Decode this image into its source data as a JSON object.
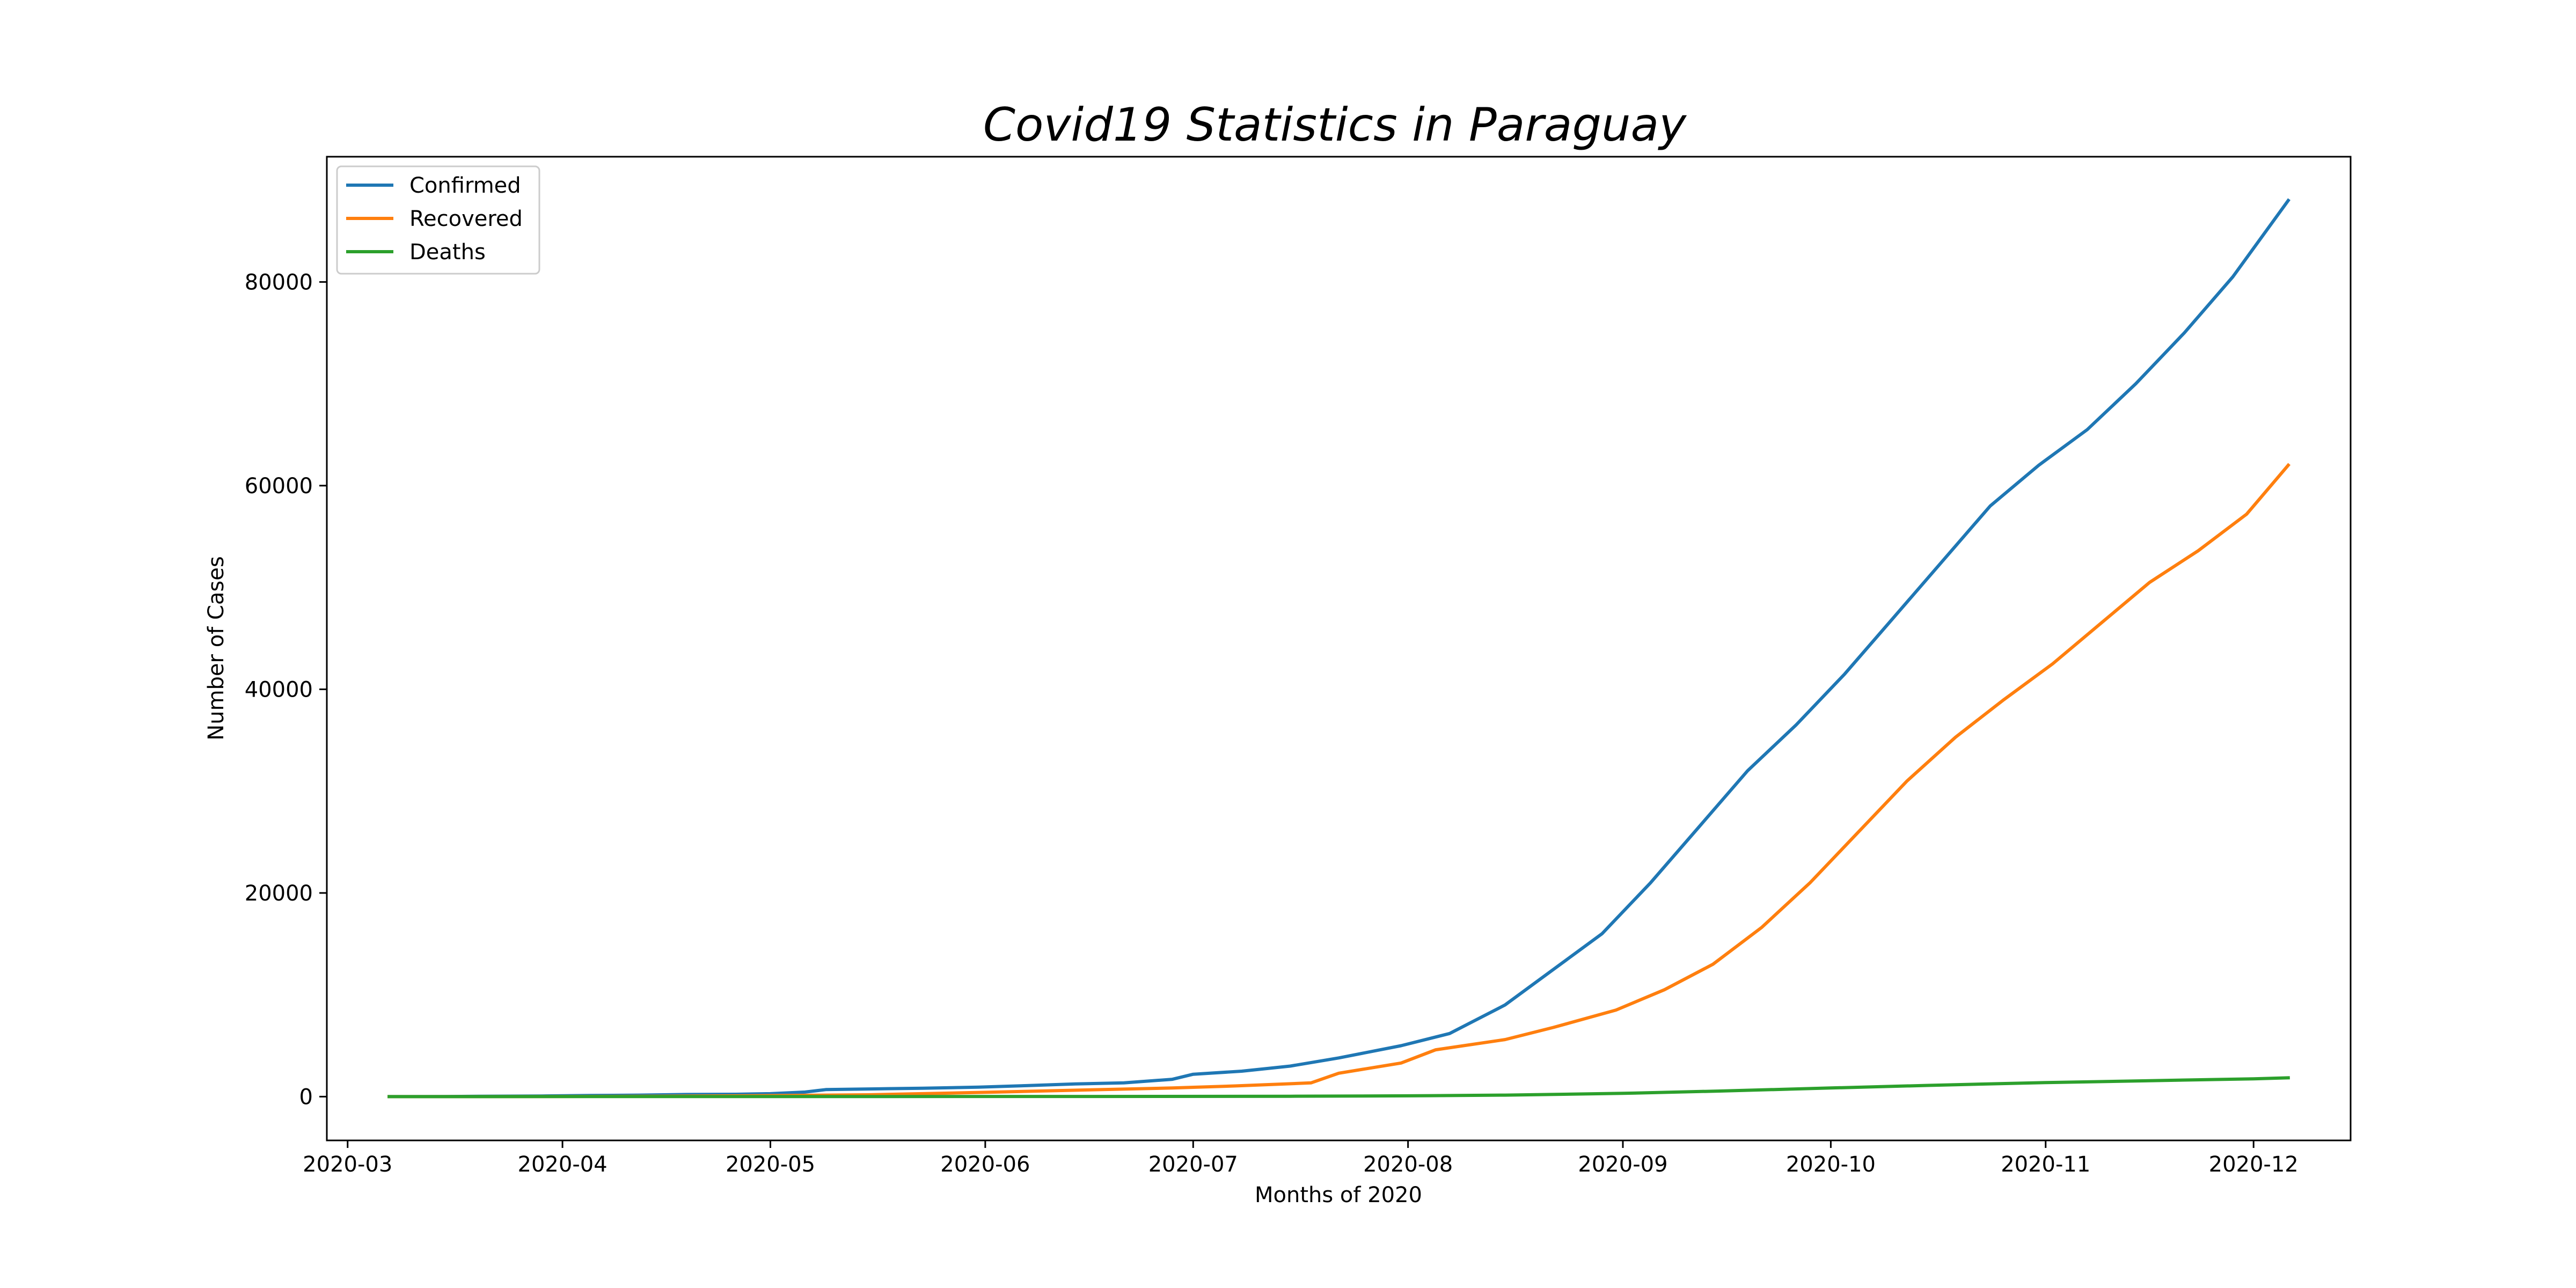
{
  "chart_data": {
    "type": "line",
    "title": "Covid19 Statistics in Paraguay",
    "xlabel": "Months of 2020",
    "ylabel": "Number of Cases",
    "x_range": [
      "2020-02-27",
      "2020-12-15"
    ],
    "ylim": [
      -4300,
      92300
    ],
    "x_ticks": [
      "2020-03",
      "2020-04",
      "2020-05",
      "2020-06",
      "2020-07",
      "2020-08",
      "2020-09",
      "2020-10",
      "2020-11",
      "2020-12"
    ],
    "y_ticks": [
      0,
      20000,
      40000,
      60000,
      80000
    ],
    "grid": false,
    "legend_position": "top-left",
    "series": [
      {
        "name": "Confirmed",
        "color": "#1f77b4",
        "points": [
          [
            "2020-03-07",
            0
          ],
          [
            "2020-03-15",
            10
          ],
          [
            "2020-03-22",
            40
          ],
          [
            "2020-03-29",
            65
          ],
          [
            "2020-04-05",
            110
          ],
          [
            "2020-04-12",
            150
          ],
          [
            "2020-04-19",
            210
          ],
          [
            "2020-04-26",
            230
          ],
          [
            "2020-05-01",
            290
          ],
          [
            "2020-05-06",
            450
          ],
          [
            "2020-05-09",
            690
          ],
          [
            "2020-05-16",
            760
          ],
          [
            "2020-05-23",
            830
          ],
          [
            "2020-05-31",
            930
          ],
          [
            "2020-06-07",
            1080
          ],
          [
            "2020-06-14",
            1250
          ],
          [
            "2020-06-21",
            1350
          ],
          [
            "2020-06-28",
            1700
          ],
          [
            "2020-07-01",
            2200
          ],
          [
            "2020-07-08",
            2500
          ],
          [
            "2020-07-15",
            3000
          ],
          [
            "2020-07-22",
            3800
          ],
          [
            "2020-07-31",
            5000
          ],
          [
            "2020-08-07",
            6200
          ],
          [
            "2020-08-15",
            9000
          ],
          [
            "2020-08-22",
            12500
          ],
          [
            "2020-08-29",
            16000
          ],
          [
            "2020-09-05",
            21000
          ],
          [
            "2020-09-12",
            26500
          ],
          [
            "2020-09-19",
            32000
          ],
          [
            "2020-09-26",
            36500
          ],
          [
            "2020-10-03",
            41500
          ],
          [
            "2020-10-10",
            47000
          ],
          [
            "2020-10-17",
            52500
          ],
          [
            "2020-10-24",
            58000
          ],
          [
            "2020-10-31",
            62000
          ],
          [
            "2020-11-07",
            65500
          ],
          [
            "2020-11-14",
            70000
          ],
          [
            "2020-11-21",
            75000
          ],
          [
            "2020-11-28",
            80500
          ],
          [
            "2020-12-06",
            88000
          ]
        ]
      },
      {
        "name": "Recovered",
        "color": "#ff7f0e",
        "points": [
          [
            "2020-03-07",
            0
          ],
          [
            "2020-03-29",
            5
          ],
          [
            "2020-04-15",
            40
          ],
          [
            "2020-05-01",
            100
          ],
          [
            "2020-05-15",
            180
          ],
          [
            "2020-06-01",
            420
          ],
          [
            "2020-06-15",
            650
          ],
          [
            "2020-06-28",
            850
          ],
          [
            "2020-07-07",
            1050
          ],
          [
            "2020-07-18",
            1350
          ],
          [
            "2020-07-22",
            2300
          ],
          [
            "2020-07-31",
            3300
          ],
          [
            "2020-08-05",
            4600
          ],
          [
            "2020-08-15",
            5600
          ],
          [
            "2020-08-22",
            6800
          ],
          [
            "2020-08-31",
            8500
          ],
          [
            "2020-09-07",
            10500
          ],
          [
            "2020-09-14",
            13000
          ],
          [
            "2020-09-21",
            16600
          ],
          [
            "2020-09-28",
            21000
          ],
          [
            "2020-10-05",
            26000
          ],
          [
            "2020-10-12",
            31000
          ],
          [
            "2020-10-19",
            35300
          ],
          [
            "2020-10-26",
            39000
          ],
          [
            "2020-11-02",
            42500
          ],
          [
            "2020-11-09",
            46500
          ],
          [
            "2020-11-16",
            50500
          ],
          [
            "2020-11-23",
            53600
          ],
          [
            "2020-11-30",
            57200
          ],
          [
            "2020-12-06",
            62000
          ]
        ]
      },
      {
        "name": "Deaths",
        "color": "#2ca02c",
        "points": [
          [
            "2020-03-07",
            0
          ],
          [
            "2020-04-15",
            9
          ],
          [
            "2020-05-15",
            11
          ],
          [
            "2020-06-15",
            16
          ],
          [
            "2020-07-15",
            35
          ],
          [
            "2020-08-01",
            80
          ],
          [
            "2020-08-15",
            150
          ],
          [
            "2020-09-01",
            320
          ],
          [
            "2020-09-15",
            550
          ],
          [
            "2020-10-01",
            850
          ],
          [
            "2020-10-15",
            1100
          ],
          [
            "2020-11-01",
            1380
          ],
          [
            "2020-11-15",
            1550
          ],
          [
            "2020-12-01",
            1750
          ],
          [
            "2020-12-06",
            1850
          ]
        ]
      }
    ]
  }
}
